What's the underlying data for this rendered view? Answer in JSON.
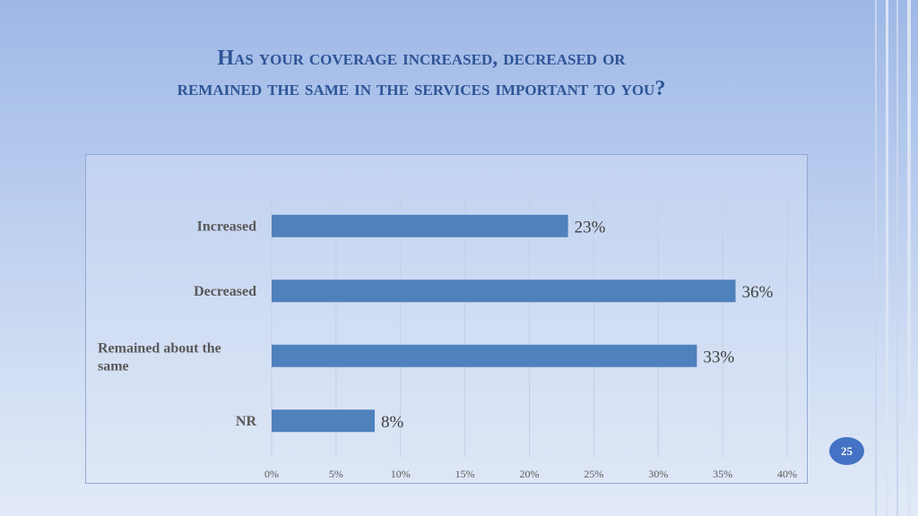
{
  "slide": {
    "title_line1": "Has your coverage increased, decreased or",
    "title_line2": "remained the same in the services important to you?",
    "page_number": "25"
  },
  "chart_data": {
    "type": "bar",
    "orientation": "horizontal",
    "categories": [
      "Increased",
      "Decreased",
      "Remained about the same",
      "NR"
    ],
    "values": [
      23,
      36,
      33,
      8
    ],
    "value_labels": [
      "23%",
      "36%",
      "33%",
      "8%"
    ],
    "xlim": [
      0,
      40
    ],
    "xticks": [
      "0%",
      "5%",
      "10%",
      "15%",
      "20%",
      "25%",
      "30%",
      "35%",
      "40%"
    ],
    "grid": true,
    "bar_color": "#4f81bd"
  }
}
